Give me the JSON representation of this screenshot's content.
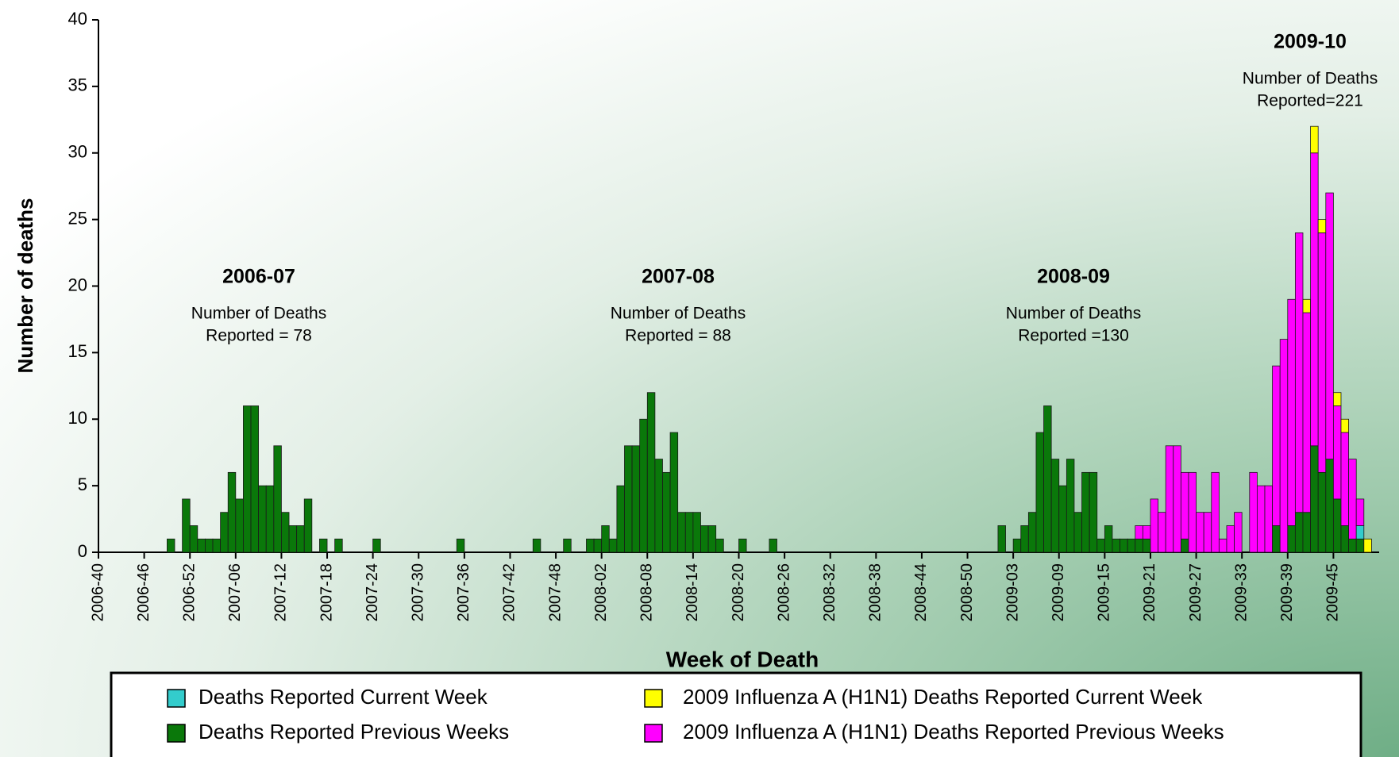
{
  "chart_data": {
    "type": "stacked_bar",
    "x_label": "Week of Death",
    "y_label": "Number of deaths",
    "ylim": [
      0,
      40
    ],
    "yticks": [
      0,
      5,
      10,
      15,
      20,
      25,
      30,
      35,
      40
    ],
    "annotations": [
      {
        "title": "2006-07",
        "text": [
          "Number of Deaths",
          "Reported = 78"
        ]
      },
      {
        "title": "2007-08",
        "text": [
          "Number of Deaths",
          "Reported = 88"
        ]
      },
      {
        "title": "2008-09",
        "text": [
          "Number of Deaths",
          "Reported =130"
        ]
      },
      {
        "title": "2009-10",
        "text": [
          "Number of Deaths",
          "Reported=221"
        ]
      }
    ],
    "categories": [
      "2006-40",
      null,
      null,
      null,
      null,
      null,
      "2006-46",
      null,
      null,
      null,
      null,
      null,
      "2006-52",
      null,
      null,
      null,
      null,
      null,
      "2007-06",
      null,
      null,
      null,
      null,
      null,
      "2007-12",
      null,
      null,
      null,
      null,
      null,
      "2007-18",
      null,
      null,
      null,
      null,
      null,
      "2007-24",
      null,
      null,
      null,
      null,
      null,
      "2007-30",
      null,
      null,
      null,
      null,
      null,
      "2007-36",
      null,
      null,
      null,
      null,
      null,
      "2007-42",
      null,
      null,
      null,
      null,
      null,
      "2007-48",
      null,
      null,
      null,
      null,
      null,
      "2008-02",
      null,
      null,
      null,
      null,
      null,
      "2008-08",
      null,
      null,
      null,
      null,
      null,
      "2008-14",
      null,
      null,
      null,
      null,
      null,
      "2008-20",
      null,
      null,
      null,
      null,
      null,
      "2008-26",
      null,
      null,
      null,
      null,
      null,
      "2008-32",
      null,
      null,
      null,
      null,
      null,
      "2008-38",
      null,
      null,
      null,
      null,
      null,
      "2008-44",
      null,
      null,
      null,
      null,
      null,
      "2008-50",
      null,
      null,
      null,
      null,
      null,
      "2009-03",
      null,
      null,
      null,
      null,
      null,
      "2009-09",
      null,
      null,
      null,
      null,
      null,
      "2009-15",
      null,
      null,
      null,
      null,
      null,
      "2009-21",
      null,
      null,
      null,
      null,
      null,
      "2009-27",
      null,
      null,
      null,
      null,
      null,
      "2009-33",
      null,
      null,
      null,
      null,
      null,
      "2009-39",
      null,
      null,
      null,
      null,
      null,
      "2009-45",
      null,
      null,
      null,
      null,
      null
    ],
    "series": [
      {
        "name": "Deaths Reported Previous Weeks",
        "color": "#0a780a",
        "values": [
          0,
          0,
          0,
          0,
          0,
          0,
          0,
          0,
          0,
          1,
          0,
          4,
          2,
          1,
          1,
          1,
          3,
          6,
          4,
          11,
          11,
          5,
          5,
          8,
          3,
          2,
          2,
          4,
          0,
          1,
          0,
          1,
          0,
          0,
          0,
          0,
          1,
          0,
          0,
          0,
          0,
          0,
          0,
          0,
          0,
          0,
          0,
          1,
          0,
          0,
          0,
          0,
          0,
          0,
          0,
          0,
          0,
          1,
          0,
          0,
          0,
          1,
          0,
          0,
          1,
          1,
          2,
          1,
          5,
          8,
          8,
          10,
          12,
          7,
          6,
          9,
          3,
          3,
          3,
          2,
          2,
          1,
          0,
          0,
          1,
          0,
          0,
          0,
          1,
          0,
          0,
          0,
          0,
          0,
          0,
          0,
          0,
          0,
          0,
          0,
          0,
          0,
          0,
          0,
          0,
          0,
          0,
          0,
          0,
          0,
          0,
          0,
          0,
          0,
          0,
          0,
          0,
          0,
          2,
          0,
          1,
          2,
          3,
          9,
          11,
          7,
          5,
          7,
          3,
          6,
          6,
          1,
          2,
          1,
          1,
          1,
          1,
          1,
          0,
          0,
          0,
          0,
          1,
          0,
          0,
          0,
          0,
          0,
          0,
          0,
          0,
          0,
          0,
          0,
          2,
          0,
          2,
          3,
          3,
          8,
          6,
          7,
          4,
          2,
          1,
          1,
          0,
          0
        ]
      },
      {
        "name": "Deaths Reported Current Week",
        "color": "#33cccc",
        "values": [
          0,
          0,
          0,
          0,
          0,
          0,
          0,
          0,
          0,
          0,
          0,
          0,
          0,
          0,
          0,
          0,
          0,
          0,
          0,
          0,
          0,
          0,
          0,
          0,
          0,
          0,
          0,
          0,
          0,
          0,
          0,
          0,
          0,
          0,
          0,
          0,
          0,
          0,
          0,
          0,
          0,
          0,
          0,
          0,
          0,
          0,
          0,
          0,
          0,
          0,
          0,
          0,
          0,
          0,
          0,
          0,
          0,
          0,
          0,
          0,
          0,
          0,
          0,
          0,
          0,
          0,
          0,
          0,
          0,
          0,
          0,
          0,
          0,
          0,
          0,
          0,
          0,
          0,
          0,
          0,
          0,
          0,
          0,
          0,
          0,
          0,
          0,
          0,
          0,
          0,
          0,
          0,
          0,
          0,
          0,
          0,
          0,
          0,
          0,
          0,
          0,
          0,
          0,
          0,
          0,
          0,
          0,
          0,
          0,
          0,
          0,
          0,
          0,
          0,
          0,
          0,
          0,
          0,
          0,
          0,
          0,
          0,
          0,
          0,
          0,
          0,
          0,
          0,
          0,
          0,
          0,
          0,
          0,
          0,
          0,
          0,
          0,
          0,
          0,
          0,
          0,
          0,
          0,
          0,
          0,
          0,
          0,
          0,
          0,
          0,
          0,
          0,
          0,
          0,
          0,
          0,
          0,
          0,
          0,
          0,
          0,
          0,
          0,
          0,
          0,
          1,
          0,
          0
        ]
      },
      {
        "name": "2009 Influenza A (H1N1) Deaths Reported Previous Weeks",
        "color": "#ff00ff",
        "values": [
          0,
          0,
          0,
          0,
          0,
          0,
          0,
          0,
          0,
          0,
          0,
          0,
          0,
          0,
          0,
          0,
          0,
          0,
          0,
          0,
          0,
          0,
          0,
          0,
          0,
          0,
          0,
          0,
          0,
          0,
          0,
          0,
          0,
          0,
          0,
          0,
          0,
          0,
          0,
          0,
          0,
          0,
          0,
          0,
          0,
          0,
          0,
          0,
          0,
          0,
          0,
          0,
          0,
          0,
          0,
          0,
          0,
          0,
          0,
          0,
          0,
          0,
          0,
          0,
          0,
          0,
          0,
          0,
          0,
          0,
          0,
          0,
          0,
          0,
          0,
          0,
          0,
          0,
          0,
          0,
          0,
          0,
          0,
          0,
          0,
          0,
          0,
          0,
          0,
          0,
          0,
          0,
          0,
          0,
          0,
          0,
          0,
          0,
          0,
          0,
          0,
          0,
          0,
          0,
          0,
          0,
          0,
          0,
          0,
          0,
          0,
          0,
          0,
          0,
          0,
          0,
          0,
          0,
          0,
          0,
          0,
          0,
          0,
          0,
          0,
          0,
          0,
          0,
          0,
          0,
          0,
          0,
          0,
          0,
          0,
          0,
          1,
          1,
          4,
          3,
          8,
          8,
          5,
          6,
          3,
          3,
          6,
          1,
          2,
          3,
          0,
          6,
          5,
          5,
          12,
          16,
          17,
          21,
          15,
          22,
          18,
          20,
          7,
          7,
          6,
          2,
          0,
          0
        ]
      },
      {
        "name": "2009 Influenza A (H1N1) Deaths Reported Current Week",
        "color": "#ffff00",
        "values": [
          0,
          0,
          0,
          0,
          0,
          0,
          0,
          0,
          0,
          0,
          0,
          0,
          0,
          0,
          0,
          0,
          0,
          0,
          0,
          0,
          0,
          0,
          0,
          0,
          0,
          0,
          0,
          0,
          0,
          0,
          0,
          0,
          0,
          0,
          0,
          0,
          0,
          0,
          0,
          0,
          0,
          0,
          0,
          0,
          0,
          0,
          0,
          0,
          0,
          0,
          0,
          0,
          0,
          0,
          0,
          0,
          0,
          0,
          0,
          0,
          0,
          0,
          0,
          0,
          0,
          0,
          0,
          0,
          0,
          0,
          0,
          0,
          0,
          0,
          0,
          0,
          0,
          0,
          0,
          0,
          0,
          0,
          0,
          0,
          0,
          0,
          0,
          0,
          0,
          0,
          0,
          0,
          0,
          0,
          0,
          0,
          0,
          0,
          0,
          0,
          0,
          0,
          0,
          0,
          0,
          0,
          0,
          0,
          0,
          0,
          0,
          0,
          0,
          0,
          0,
          0,
          0,
          0,
          0,
          0,
          0,
          0,
          0,
          0,
          0,
          0,
          0,
          0,
          0,
          0,
          0,
          0,
          0,
          0,
          0,
          0,
          0,
          0,
          0,
          0,
          0,
          0,
          0,
          0,
          0,
          0,
          0,
          0,
          0,
          0,
          0,
          0,
          0,
          0,
          0,
          0,
          0,
          0,
          1,
          2,
          1,
          0,
          1,
          1,
          0,
          0,
          1,
          0
        ]
      }
    ]
  }
}
